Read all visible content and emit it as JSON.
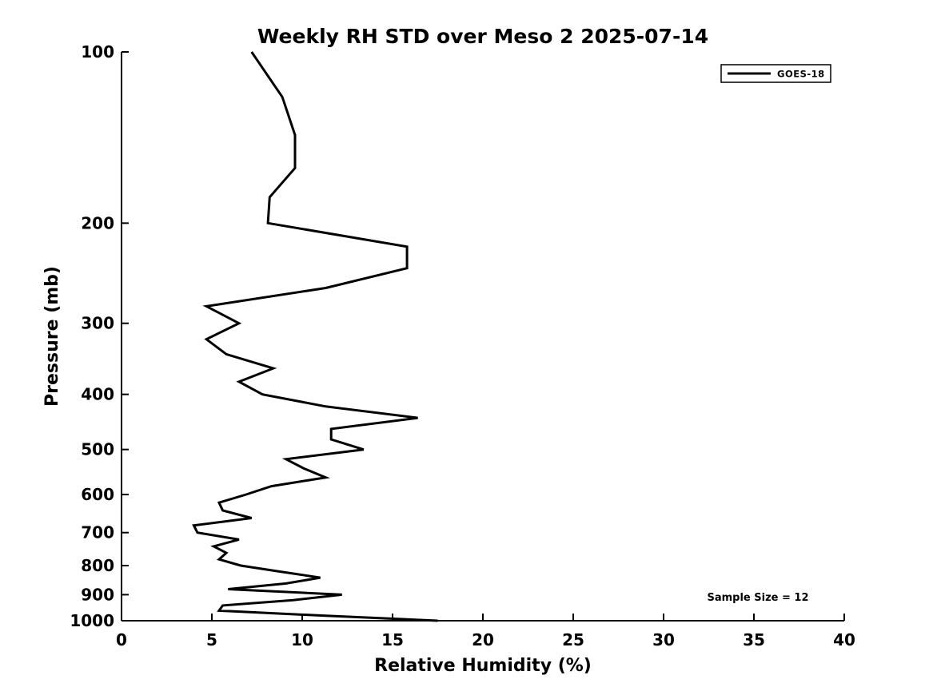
{
  "chart_data": {
    "type": "line",
    "title": "Weekly RH STD over Meso 2 2025-07-14",
    "xlabel": "Relative Humidity (%)",
    "ylabel": "Pressure (mb)",
    "xlim": [
      0,
      40
    ],
    "xticks": [
      0,
      5,
      10,
      15,
      20,
      25,
      30,
      35,
      40
    ],
    "yscale": "log",
    "y_direction": "increasing-downward",
    "ylim": [
      100,
      1000
    ],
    "yticks": [
      100,
      200,
      300,
      400,
      500,
      600,
      700,
      800,
      900,
      1000
    ],
    "grid": false,
    "legend_position": "top-right",
    "annotation": "Sample Size = 12",
    "line_color": "#000000",
    "background_color": "#ffffff",
    "series": [
      {
        "name": "GOES-18",
        "color": "#000000",
        "pressure_mb": [
          100,
          120,
          140,
          160,
          180,
          200,
          220,
          240,
          260,
          280,
          300,
          320,
          340,
          360,
          380,
          400,
          420,
          440,
          460,
          480,
          500,
          520,
          540,
          560,
          580,
          600,
          620,
          640,
          660,
          680,
          700,
          720,
          740,
          760,
          780,
          800,
          820,
          840,
          860,
          880,
          900,
          920,
          940,
          960,
          980,
          1000
        ],
        "rh_std_percent": [
          7.2,
          8.9,
          9.6,
          9.6,
          8.2,
          8.1,
          15.8,
          15.8,
          11.3,
          4.7,
          6.5,
          4.7,
          5.8,
          8.4,
          6.5,
          7.8,
          11.3,
          16.4,
          11.6,
          11.6,
          13.4,
          9.1,
          10.1,
          11.3,
          8.3,
          6.9,
          5.4,
          5.6,
          7.2,
          4.0,
          4.2,
          6.5,
          5.1,
          5.8,
          5.4,
          6.6,
          8.8,
          11.0,
          9.1,
          5.9,
          12.2,
          9.5,
          5.6,
          5.4,
          11.3,
          17.5
        ]
      }
    ]
  }
}
